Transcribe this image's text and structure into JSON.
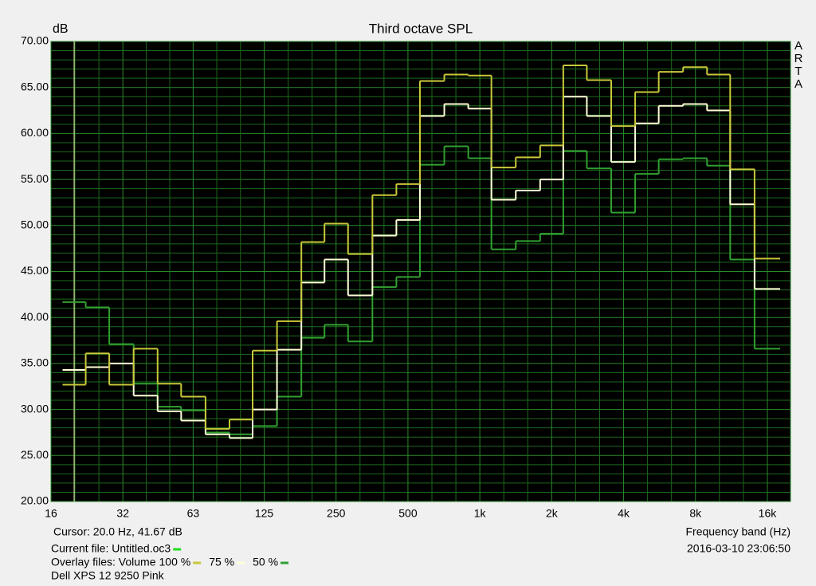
{
  "chart_data": {
    "type": "step",
    "title": "Third octave SPL",
    "y_label": "dB",
    "x_label": "Frequency band (Hz)",
    "watermark": "ARTA",
    "log_x": true,
    "grid": true,
    "cursor": {
      "label": "Cursor:   20.0 Hz, 41.67 dB",
      "x": 20,
      "color": "#ffffc0"
    },
    "current_file": {
      "label": "Current file: Untitled.oc3",
      "color": "#22dd22"
    },
    "timestamp": "2016-03-10  23:06:50",
    "legend_prefix": "Overlay files: Volume",
    "footer": "Dell XPS 12 9250 Pink",
    "xlim": [
      16,
      20000
    ],
    "ylim": [
      20,
      70
    ],
    "xticks": [
      16,
      32,
      63,
      125,
      250,
      500,
      {
        "value": 1000,
        "label": "1k"
      },
      {
        "value": 2000,
        "label": "2k"
      },
      {
        "value": 4000,
        "label": "4k"
      },
      {
        "value": 8000,
        "label": "8k"
      },
      {
        "value": 16000,
        "label": "16k"
      }
    ],
    "yticks": [
      {
        "value": 20,
        "label": "20.00"
      },
      {
        "value": 25,
        "label": "25.00"
      },
      {
        "value": 30,
        "label": "30.00"
      },
      {
        "value": 35,
        "label": "35.00"
      },
      {
        "value": 40,
        "label": "40.00"
      },
      {
        "value": 45,
        "label": "45.00"
      },
      {
        "value": 50,
        "label": "50.00"
      },
      {
        "value": 55,
        "label": "55.00"
      },
      {
        "value": 60,
        "label": "60.00"
      },
      {
        "value": 65,
        "label": "65.00"
      },
      {
        "value": 70,
        "label": "70.00"
      }
    ],
    "x": [
      20,
      25,
      31.5,
      40,
      50,
      63,
      80,
      100,
      125,
      160,
      200,
      250,
      315,
      400,
      500,
      630,
      800,
      1000,
      1250,
      1600,
      2000,
      2500,
      3150,
      4000,
      5000,
      6300,
      8000,
      10000,
      12500,
      16000
    ],
    "series": [
      {
        "name": "100 %",
        "color": "#c8c83a",
        "values": [
          32.7,
          36.1,
          32.7,
          36.6,
          32.8,
          31.4,
          27.9,
          28.9,
          36.4,
          39.6,
          48.2,
          50.2,
          46.9,
          53.3,
          54.5,
          65.7,
          66.4,
          66.3,
          56.3,
          57.4,
          58.7,
          67.4,
          65.8,
          60.8,
          64.5,
          66.7,
          67.2,
          66.4,
          56.1,
          46.4
        ]
      },
      {
        "name": "75 %",
        "color": "#ffffd8",
        "values": [
          34.3,
          34.6,
          35.0,
          31.5,
          29.8,
          28.8,
          27.3,
          26.9,
          30.0,
          36.5,
          43.8,
          46.3,
          42.4,
          48.9,
          50.6,
          61.9,
          63.2,
          62.7,
          52.8,
          53.8,
          55.0,
          64.0,
          61.9,
          56.9,
          61.1,
          63.0,
          63.2,
          62.5,
          52.3,
          43.1
        ]
      },
      {
        "name": "50 %",
        "color": "#30a030",
        "values": [
          41.67,
          41.1,
          37.1,
          32.8,
          30.3,
          29.9,
          27.5,
          27.3,
          28.2,
          31.4,
          37.8,
          39.2,
          37.4,
          43.3,
          44.4,
          56.6,
          58.6,
          57.3,
          47.4,
          48.3,
          49.1,
          58.1,
          56.2,
          51.4,
          55.6,
          57.2,
          57.3,
          56.5,
          46.3,
          36.6
        ]
      }
    ]
  }
}
